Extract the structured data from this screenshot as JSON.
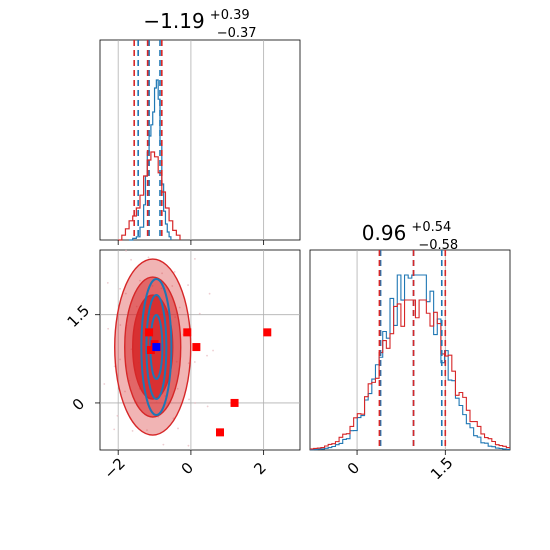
{
  "chart_data": [
    {
      "type": "histogram",
      "panel": "marginal-param-1",
      "title": {
        "value": "−1.19",
        "plus": "+0.39",
        "minus": "−0.37"
      },
      "xlim": [
        -2.5,
        3.0
      ],
      "xticks": [
        -2,
        0,
        2
      ],
      "series": [
        {
          "color": "#1f77b4",
          "bins": [
            [
              -1.7,
              0.0
            ],
            [
              -1.6,
              0.01
            ],
            [
              -1.5,
              0.02
            ],
            [
              -1.4,
              0.08
            ],
            [
              -1.3,
              0.22
            ],
            [
              -1.25,
              0.4
            ],
            [
              -1.2,
              0.55
            ],
            [
              -1.15,
              0.65
            ],
            [
              -1.1,
              0.72
            ],
            [
              -1.05,
              0.8
            ],
            [
              -1.0,
              0.95
            ],
            [
              -0.95,
              1.0
            ],
            [
              -0.9,
              0.88
            ],
            [
              -0.85,
              0.6
            ],
            [
              -0.8,
              0.35
            ],
            [
              -0.75,
              0.18
            ],
            [
              -0.7,
              0.1
            ],
            [
              -0.65,
              0.05
            ],
            [
              -0.6,
              0.02
            ],
            [
              -0.55,
              0.0
            ]
          ],
          "quantiles": [
            -1.45,
            -1.15,
            -0.85
          ]
        },
        {
          "color": "#d62728",
          "bins": [
            [
              -2.0,
              0.0
            ],
            [
              -1.9,
              0.03
            ],
            [
              -1.8,
              0.07
            ],
            [
              -1.7,
              0.12
            ],
            [
              -1.6,
              0.15
            ],
            [
              -1.5,
              0.2
            ],
            [
              -1.4,
              0.28
            ],
            [
              -1.3,
              0.4
            ],
            [
              -1.2,
              0.5
            ],
            [
              -1.1,
              0.55
            ],
            [
              -1.0,
              0.52
            ],
            [
              -0.9,
              0.42
            ],
            [
              -0.8,
              0.3
            ],
            [
              -0.7,
              0.2
            ],
            [
              -0.6,
              0.12
            ],
            [
              -0.5,
              0.06
            ],
            [
              -0.4,
              0.03
            ],
            [
              -0.3,
              0.0
            ]
          ],
          "quantiles": [
            -1.56,
            -1.19,
            -0.8
          ]
        }
      ]
    },
    {
      "type": "scatter",
      "panel": "joint-param-1-vs-param-2",
      "xlim": [
        -2.5,
        3.0
      ],
      "ylim": [
        -0.8,
        2.6
      ],
      "xticks": [
        -2,
        0,
        2
      ],
      "yticks": [
        0.0,
        1.5
      ],
      "points": [
        [
          -1.15,
          1.2
        ],
        [
          -0.1,
          1.2
        ],
        [
          0.15,
          0.95
        ],
        [
          2.1,
          1.2
        ],
        [
          1.2,
          0.0
        ],
        [
          0.8,
          -0.5
        ],
        [
          -1.0,
          1.0
        ],
        [
          -1.1,
          0.9
        ]
      ],
      "highlight_point": [
        -0.95,
        0.95
      ],
      "point_color": "#ff0000",
      "highlight_color": "#0000ff",
      "contour_fill": "#d62728",
      "contour_line_blue": "#1f77b4"
    },
    {
      "type": "histogram",
      "panel": "marginal-param-2",
      "title": {
        "value": "0.96",
        "plus": "+0.54",
        "minus": "−0.58"
      },
      "xlim": [
        -0.8,
        2.6
      ],
      "xticks": [
        0.0,
        1.5
      ],
      "series": [
        {
          "color": "#1f77b4",
          "quantiles": [
            0.4,
            0.96,
            1.44
          ]
        },
        {
          "color": "#d62728",
          "quantiles": [
            0.38,
            0.96,
            1.5
          ]
        }
      ]
    }
  ]
}
